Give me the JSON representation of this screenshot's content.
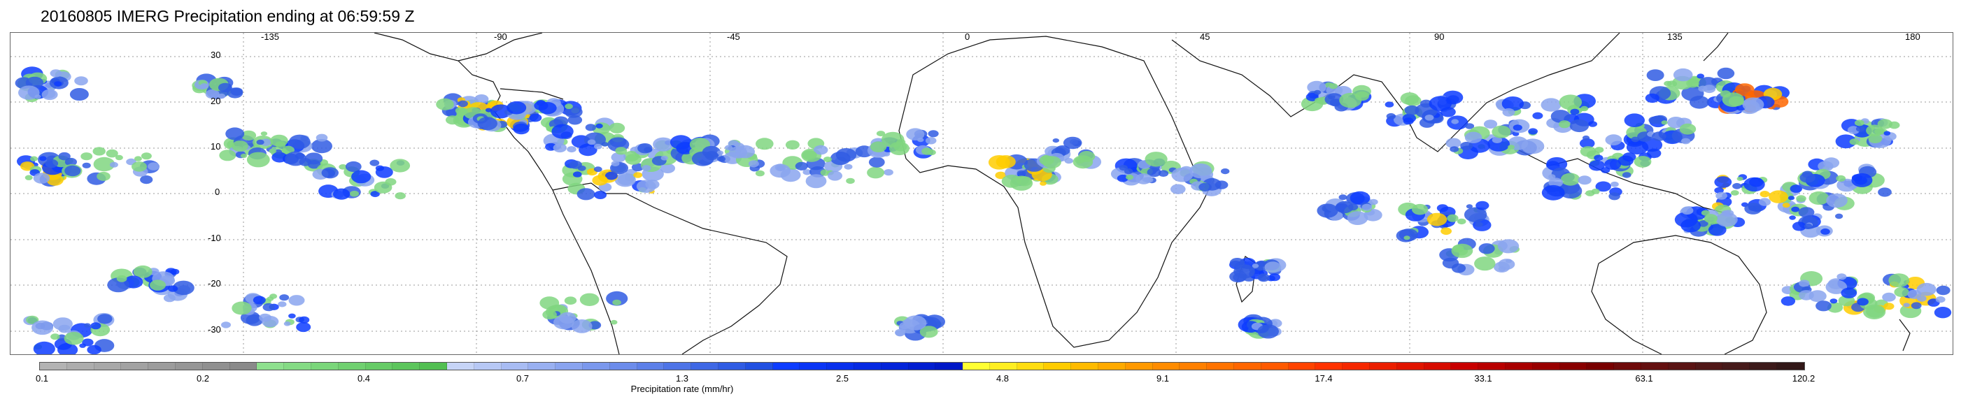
{
  "title": "20160805 IMERG Precipitation ending at 06:59:59 Z",
  "map": {
    "lon_labels": [
      "-135",
      "-90",
      "-45",
      "0",
      "45",
      "90",
      "135",
      "180"
    ],
    "lat_labels": [
      "30",
      "20",
      "10",
      "0",
      "-10",
      "-20",
      "-30"
    ],
    "gridlines": "dotted",
    "background": "#ffffff",
    "coastline_color": "#000000"
  },
  "colorbar": {
    "label": "Precipitation rate (mm/hr)",
    "tick_labels": [
      "0.1",
      "0.2",
      "0.4",
      "0.7",
      "1.3",
      "2.5",
      "4.8",
      "9.1",
      "17.4",
      "33.1",
      "63.1",
      "120.2"
    ],
    "colors": [
      "#b3b3b3",
      "#adadad",
      "#a8a8a8",
      "#a2a2a2",
      "#9c9c9c",
      "#969696",
      "#909090",
      "#8a8a8a",
      "#8ee08e",
      "#84db84",
      "#7ad67a",
      "#70d070",
      "#66cb66",
      "#5cc55c",
      "#52bf52",
      "#c6d4f7",
      "#b7c8f5",
      "#a8bcf3",
      "#99b0f1",
      "#8aa4ef",
      "#7b98ed",
      "#6c8ceb",
      "#5d80e9",
      "#4e74e7",
      "#3f68e5",
      "#305ce3",
      "#2150e1",
      "#0d3cff",
      "#0a35f5",
      "#0830ec",
      "#062ae2",
      "#0424d9",
      "#021ed0",
      "#0018c6",
      "#ffff33",
      "#ffee22",
      "#ffdd11",
      "#ffcc00",
      "#ffbb00",
      "#ffaa00",
      "#ff9900",
      "#ff8c00",
      "#ff8000",
      "#ff7300",
      "#ff6600",
      "#ff5a00",
      "#ff4400",
      "#ff3300",
      "#f52800",
      "#eb1f00",
      "#e01500",
      "#d60c00",
      "#c80000",
      "#b80000",
      "#a80000",
      "#980000",
      "#880000",
      "#780000",
      "#6e0a0a",
      "#641010",
      "#5a1414",
      "#501818",
      "#461a1a",
      "#3c1a1a",
      "#321818"
    ]
  }
}
